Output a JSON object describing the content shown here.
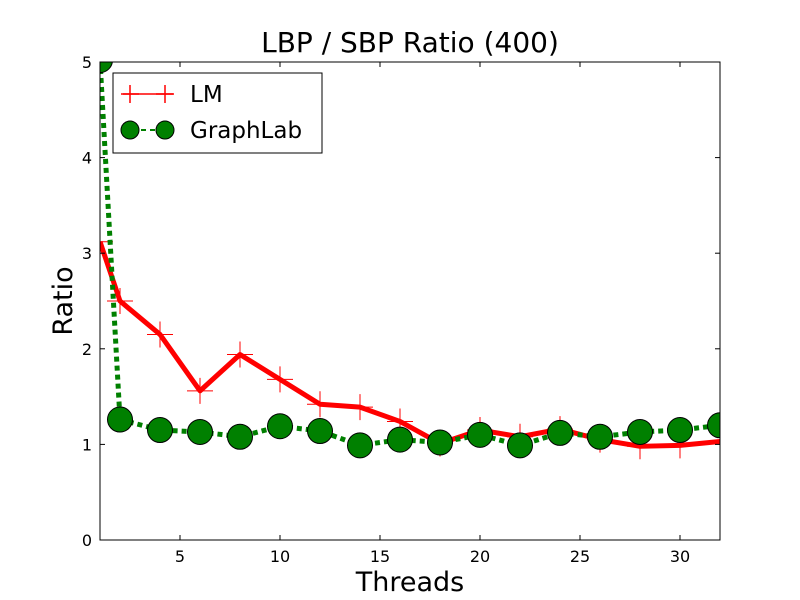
{
  "chart_data": {
    "type": "line",
    "title": "LBP / SBP Ratio (400)",
    "xlabel": "Threads",
    "ylabel": "Ratio",
    "xlim": [
      1,
      32
    ],
    "ylim": [
      0,
      5
    ],
    "xticks": [
      5,
      10,
      15,
      20,
      25,
      30
    ],
    "yticks": [
      0,
      1,
      2,
      3,
      4,
      5
    ],
    "grid": false,
    "legend_position": "top-left",
    "series": [
      {
        "name": "LM",
        "color": "#ff0000",
        "line_style": "solid",
        "marker": "plus",
        "x": [
          1,
          2,
          4,
          6,
          8,
          10,
          12,
          14,
          16,
          18,
          20,
          22,
          24,
          26,
          28,
          30,
          32
        ],
        "y": [
          3.12,
          2.5,
          2.15,
          1.56,
          1.94,
          1.68,
          1.42,
          1.39,
          1.24,
          1.01,
          1.15,
          1.08,
          1.16,
          1.05,
          0.98,
          0.99,
          1.03
        ]
      },
      {
        "name": "GraphLab",
        "color": "#008000",
        "line_style": "dotted",
        "marker": "circle",
        "x": [
          1,
          2,
          4,
          6,
          8,
          10,
          12,
          14,
          16,
          18,
          20,
          22,
          24,
          26,
          28,
          30,
          32
        ],
        "y": [
          5.02,
          1.26,
          1.15,
          1.13,
          1.08,
          1.19,
          1.14,
          0.99,
          1.05,
          1.02,
          1.1,
          0.99,
          1.12,
          1.08,
          1.13,
          1.15,
          1.2
        ]
      }
    ]
  }
}
